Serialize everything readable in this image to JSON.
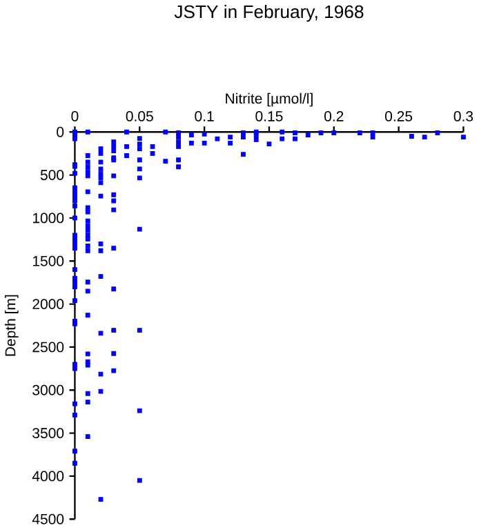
{
  "chart_data": {
    "type": "scatter",
    "title": "JSTY in February, 1968",
    "xlabel": "Nitrite [µmol/l]",
    "ylabel": "Depth [m]",
    "xlim": [
      0,
      0.3
    ],
    "ylim": [
      4500,
      0
    ],
    "xticks": [
      0,
      0.05,
      0.1,
      0.15,
      0.2,
      0.25,
      0.3
    ],
    "yticks": [
      0,
      500,
      1000,
      1500,
      2000,
      2500,
      3000,
      3500,
      4000,
      4500
    ],
    "marker": "square",
    "grid": false,
    "series": [
      {
        "color": "#0000ff",
        "x": [
          0,
          0,
          0,
          0,
          0,
          0,
          0,
          0,
          0,
          0,
          0,
          0,
          0,
          0,
          0,
          0,
          0,
          0,
          0,
          0,
          0,
          0,
          0,
          0,
          0,
          0,
          0,
          0,
          0,
          0,
          0.01,
          0.01,
          0.01,
          0.01,
          0.01,
          0.01,
          0.01,
          0.01,
          0.01,
          0.01,
          0.01,
          0.01,
          0.01,
          0.01,
          0.01,
          0.01,
          0.01,
          0.01,
          0.01,
          0.01,
          0.01,
          0.01,
          0.01,
          0.01,
          0.01,
          0.02,
          0.02,
          0.02,
          0.02,
          0.02,
          0.02,
          0.02,
          0.02,
          0.02,
          0.02,
          0.02,
          0.02,
          0.02,
          0.02,
          0.02,
          0.03,
          0.03,
          0.03,
          0.03,
          0.03,
          0.03,
          0.03,
          0.03,
          0.03,
          0.03,
          0.03,
          0.03,
          0.03,
          0.03,
          0.04,
          0.04,
          0.04,
          0.05,
          0.05,
          0.05,
          0.05,
          0.05,
          0.05,
          0.05,
          0.05,
          0.05,
          0.05,
          0.06,
          0.06,
          0.07,
          0.07,
          0.08,
          0.08,
          0.08,
          0.08,
          0.08,
          0.08,
          0.09,
          0.09,
          0.1,
          0.1,
          0.11,
          0.12,
          0.12,
          0.13,
          0.13,
          0.13,
          0.14,
          0.14,
          0.14,
          0.15,
          0.16,
          0.16,
          0.17,
          0.17,
          0.18,
          0.19,
          0.2,
          0.22,
          0.23,
          0.23,
          0.26,
          0.27,
          0.28,
          0.3
        ],
        "values": [
          0,
          20,
          50,
          80,
          380,
          400,
          480,
          650,
          700,
          750,
          800,
          860,
          1000,
          1200,
          1250,
          1300,
          1350,
          1600,
          1700,
          1750,
          1800,
          1960,
          2200,
          2230,
          2700,
          2750,
          3160,
          3290,
          3710,
          3850,
          275,
          350,
          405,
          460,
          510,
          695,
          880,
          930,
          1035,
          1090,
          1140,
          1195,
          1245,
          1325,
          1380,
          1745,
          1850,
          2130,
          2580,
          2670,
          2710,
          3040,
          3140,
          3540,
          0,
          195,
          250,
          350,
          430,
          485,
          535,
          590,
          745,
          1300,
          1380,
          1680,
          2340,
          2815,
          3015,
          4270,
          115,
          170,
          220,
          300,
          325,
          510,
          730,
          800,
          905,
          1350,
          1825,
          2305,
          2575,
          2775,
          0,
          170,
          275,
          75,
          140,
          195,
          325,
          430,
          535,
          1130,
          2305,
          3240,
          4050,
          170,
          250,
          0,
          340,
          10,
          60,
          115,
          170,
          325,
          405,
          35,
          130,
          25,
          130,
          80,
          60,
          130,
          10,
          60,
          260,
          0,
          40,
          90,
          140,
          0,
          80,
          10,
          80,
          35,
          10,
          10,
          10,
          10,
          60,
          50,
          60,
          10,
          60
        ]
      }
    ]
  }
}
